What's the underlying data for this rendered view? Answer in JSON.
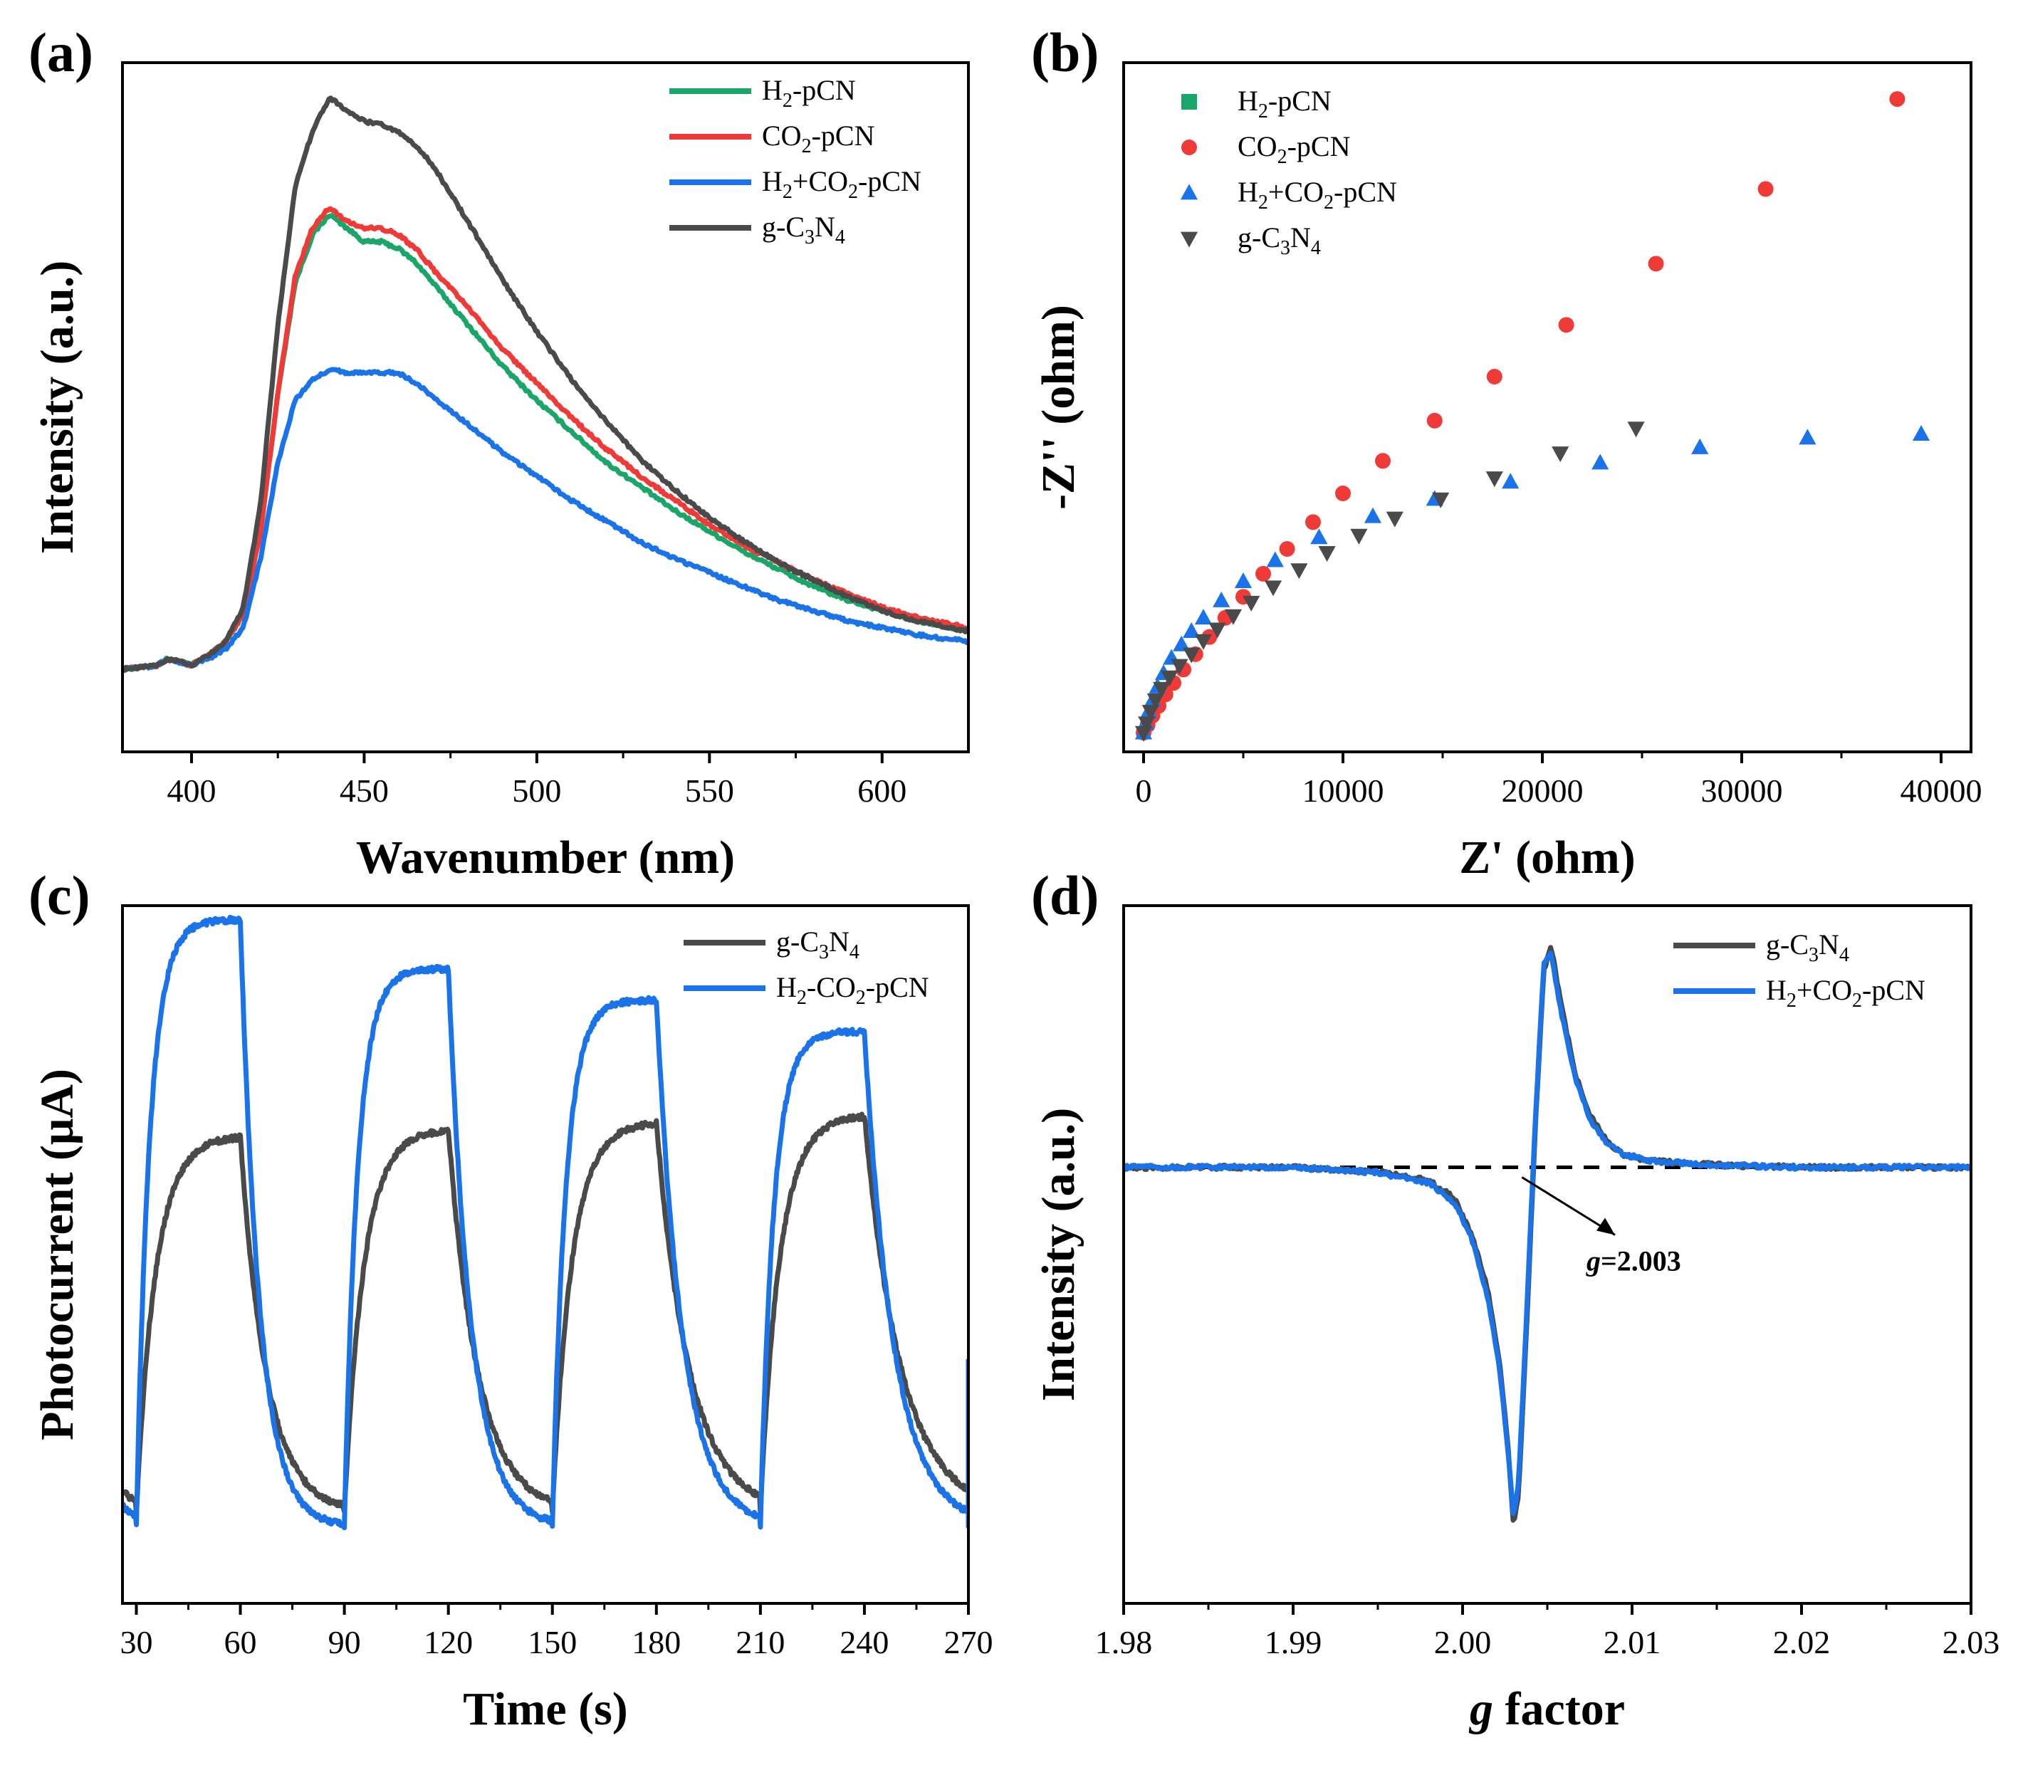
{
  "figure": {
    "panels": [
      "(a)",
      "(b)",
      "(c)",
      "(d)"
    ]
  },
  "chart_data": [
    {
      "id": "a",
      "type": "line",
      "panel_label": "(a)",
      "xlabel": "Wavenumber (nm)",
      "ylabel": "Intensity (a.u.)",
      "xlim": [
        380,
        625
      ],
      "ylim": [
        0,
        100
      ],
      "xticks": [
        400,
        450,
        500,
        550,
        600
      ],
      "yticks_shown": false,
      "legend_position": "top-right",
      "series": [
        {
          "name": "H2-pCN",
          "label_parts": [
            "H",
            "2",
            "-pCN"
          ],
          "color": "#1aa668",
          "x": [
            380,
            390,
            393,
            400,
            405,
            410,
            415,
            420,
            425,
            430,
            435,
            440,
            445,
            450,
            455,
            460,
            465,
            470,
            480,
            490,
            500,
            510,
            520,
            530,
            540,
            550,
            560,
            570,
            580,
            590,
            600,
            610,
            625
          ],
          "y": [
            12,
            12.5,
            13.5,
            12.6,
            14,
            16,
            20,
            32,
            52,
            68,
            75,
            78,
            76,
            74,
            74,
            73,
            71,
            68,
            62,
            56,
            51,
            46.5,
            42,
            38.5,
            35,
            32,
            29,
            26.5,
            24,
            22,
            20.5,
            19,
            17.5
          ]
        },
        {
          "name": "CO2-pCN",
          "label_parts": [
            "CO",
            "2",
            "-pCN"
          ],
          "color": "#ef3a38",
          "x": [
            380,
            390,
            393,
            400,
            405,
            410,
            415,
            420,
            425,
            430,
            435,
            440,
            445,
            450,
            455,
            460,
            465,
            470,
            480,
            490,
            500,
            510,
            520,
            530,
            540,
            550,
            560,
            570,
            580,
            590,
            600,
            610,
            625
          ],
          "y": [
            12,
            12.5,
            13.5,
            12.6,
            14,
            16,
            20,
            32,
            52,
            69,
            76,
            79,
            77,
            76,
            76,
            75,
            73,
            70,
            64.5,
            58.5,
            53.5,
            48.5,
            44,
            40,
            36.5,
            33,
            30,
            27.5,
            25,
            23,
            21,
            19.5,
            18
          ]
        },
        {
          "name": "H2+CO2-pCN",
          "label_parts": [
            "H",
            "2",
            "+CO",
            "2",
            "-pCN"
          ],
          "color": "#1a73e8",
          "x": [
            380,
            390,
            393,
            400,
            405,
            410,
            415,
            420,
            425,
            430,
            435,
            440,
            445,
            450,
            455,
            460,
            465,
            470,
            480,
            490,
            500,
            510,
            520,
            530,
            540,
            550,
            560,
            570,
            580,
            590,
            600,
            610,
            625
          ],
          "y": [
            12,
            12.5,
            13.5,
            12.6,
            13.5,
            15,
            18,
            28,
            42,
            51,
            54,
            55.5,
            55,
            55,
            55,
            55,
            53.5,
            51.5,
            47.5,
            43.5,
            40,
            36.5,
            33.5,
            30.5,
            28,
            26,
            24,
            22,
            20.5,
            19,
            18,
            17,
            16
          ]
        },
        {
          "name": "g-C3N4",
          "label_parts": [
            "g-C",
            "3",
            "N",
            "4"
          ],
          "color": "#4a4a4a",
          "x": [
            380,
            390,
            393,
            400,
            405,
            410,
            415,
            420,
            425,
            430,
            435,
            440,
            445,
            450,
            455,
            460,
            465,
            470,
            480,
            490,
            500,
            510,
            520,
            530,
            540,
            550,
            560,
            570,
            580,
            590,
            600,
            610,
            625
          ],
          "y": [
            12,
            12.5,
            13.5,
            12.6,
            14,
            16,
            21,
            36,
            62,
            82,
            90,
            95,
            93,
            91.5,
            91,
            90,
            88,
            85,
            77,
            68.5,
            61,
            54,
            48,
            42.5,
            38,
            34,
            30.5,
            27.5,
            25,
            22.5,
            20.5,
            19,
            17.5
          ]
        }
      ]
    },
    {
      "id": "b",
      "type": "scatter",
      "panel_label": "(b)",
      "xlabel": "Z' (ohm)",
      "ylabel": "-Z'' (ohm)",
      "xlim": [
        -1000,
        41500
      ],
      "ylim": [
        -500,
        17500
      ],
      "xticks": [
        0,
        10000,
        20000,
        30000,
        40000
      ],
      "yticks_shown": false,
      "legend_position": "top-left",
      "series": [
        {
          "name": "H2-pCN",
          "label_parts": [
            "H",
            "2",
            "-pCN"
          ],
          "color": "#1aa668",
          "marker": "square",
          "x": [],
          "y": []
        },
        {
          "name": "CO2-pCN",
          "label_parts": [
            "CO",
            "2",
            "-pCN"
          ],
          "color": "#ef3a38",
          "marker": "circle",
          "x": [
            0,
            200,
            450,
            750,
            1100,
            1500,
            2000,
            2600,
            3300,
            4100,
            5000,
            6000,
            7200,
            8500,
            10000,
            12000,
            14600,
            17600,
            21200,
            25700,
            31200,
            37800
          ],
          "y": [
            0,
            200,
            450,
            700,
            1000,
            1300,
            1650,
            2050,
            2500,
            3000,
            3550,
            4150,
            4800,
            5500,
            6250,
            7100,
            8150,
            9300,
            10650,
            12250,
            14200,
            16550
          ]
        },
        {
          "name": "H2+CO2-pCN",
          "label_parts": [
            "H",
            "2",
            "+CO",
            "2",
            "-pCN"
          ],
          "color": "#1a73e8",
          "marker": "triangle-up",
          "x": [
            0,
            100,
            250,
            450,
            700,
            1000,
            1400,
            1900,
            2400,
            3000,
            3900,
            5000,
            6600,
            8800,
            11500,
            14600,
            18400,
            22900,
            27900,
            33300,
            39000
          ],
          "y": [
            0,
            250,
            550,
            850,
            1200,
            1550,
            1950,
            2300,
            2650,
            3000,
            3450,
            3950,
            4500,
            5100,
            5650,
            6100,
            6550,
            7050,
            7450,
            7700,
            7800
          ]
        },
        {
          "name": "g-C3N4",
          "label_parts": [
            "g-C",
            "3",
            "N",
            "4"
          ],
          "color": "#4a4a4a",
          "marker": "triangle-down",
          "x": [
            0,
            150,
            350,
            600,
            900,
            1300,
            1800,
            2400,
            3000,
            3700,
            4500,
            5400,
            6500,
            7800,
            9200,
            10800,
            12600,
            14900,
            17600,
            20900,
            24700
          ],
          "y": [
            0,
            250,
            550,
            850,
            1150,
            1450,
            1750,
            2050,
            2400,
            2700,
            3050,
            3400,
            3800,
            4250,
            4700,
            5150,
            5600,
            6100,
            6650,
            7300,
            7950
          ]
        }
      ]
    },
    {
      "id": "c",
      "type": "line",
      "panel_label": "(c)",
      "xlabel": "Time (s)",
      "ylabel": "Photocurrent (μA)",
      "xlim": [
        26,
        270
      ],
      "ylim": [
        0,
        100
      ],
      "xticks": [
        30,
        60,
        90,
        120,
        150,
        180,
        210,
        240,
        270
      ],
      "yticks_shown": false,
      "legend_position": "top-right",
      "on_off_cycles": [
        [
          30,
          60
        ],
        [
          90,
          120
        ],
        [
          150,
          180
        ],
        [
          210,
          240
        ]
      ],
      "series": [
        {
          "name": "g-C3N4",
          "label_parts": [
            "g-C",
            "3",
            "N",
            "4"
          ],
          "color": "#4a4a4a",
          "baseline": 13,
          "plateaus": [
            67,
            68,
            69,
            70
          ],
          "rise_tau": 5.5,
          "decay_tau": 7.5
        },
        {
          "name": "H2-CO2-pCN",
          "label_parts": [
            "H",
            "2",
            "-CO",
            "2",
            "-pCN"
          ],
          "color": "#1a73e8",
          "baseline": 11,
          "plateaus": [
            98,
            91,
            86.5,
            82
          ],
          "rise_tau": 3.8,
          "decay_tau": 5.5
        }
      ]
    },
    {
      "id": "d",
      "type": "line",
      "panel_label": "(d)",
      "xlabel": "g factor",
      "ylabel": "Intensity (a.u.)",
      "xlim": [
        1.98,
        2.03
      ],
      "ylim": [
        -100,
        60
      ],
      "xticks": [
        1.98,
        1.99,
        2.0,
        2.01,
        2.02,
        2.03
      ],
      "xtick_labels": [
        "1.98",
        "1.99",
        "2.00",
        "2.01",
        "2.02",
        "2.03"
      ],
      "yticks_shown": false,
      "legend_position": "top-right",
      "reference_line_y": 0,
      "annotation": "g=2.003",
      "series": [
        {
          "name": "g-C3N4",
          "label_parts": [
            "g-C",
            "3",
            "N",
            "4"
          ],
          "color": "#4a4a4a",
          "x": [
            1.98,
            1.99,
            1.995,
            1.998,
            1.9995,
            2.0005,
            2.0015,
            2.0022,
            2.0027,
            2.003,
            2.0033,
            2.0038,
            2.0043,
            2.0048,
            2.0052,
            2.0058,
            2.0066,
            2.0075,
            2.0085,
            2.0095,
            2.011,
            2.015,
            2.02,
            2.025,
            2.03
          ],
          "y": [
            0,
            0,
            -1,
            -3,
            -7,
            -15,
            -28,
            -45,
            -65,
            -82,
            -75,
            -35,
            10,
            45,
            51,
            38,
            22,
            12,
            6,
            3,
            1.5,
            0.5,
            0,
            0,
            0
          ]
        },
        {
          "name": "H2+CO2-pCN",
          "label_parts": [
            "H",
            "2",
            "+CO",
            "2",
            "-pCN"
          ],
          "color": "#1a73e8",
          "x": [
            1.98,
            1.99,
            1.995,
            1.998,
            1.9995,
            2.0005,
            2.0015,
            2.0022,
            2.0027,
            2.003,
            2.0033,
            2.0038,
            2.0043,
            2.0048,
            2.0052,
            2.0058,
            2.0066,
            2.0075,
            2.0085,
            2.0095,
            2.011,
            2.015,
            2.02,
            2.025,
            2.03
          ],
          "y": [
            0,
            0,
            -1.2,
            -3.5,
            -8,
            -16,
            -30,
            -47,
            -66,
            -80,
            -72,
            -32,
            12,
            47,
            49,
            36,
            21,
            11,
            5.5,
            3,
            1.5,
            0.5,
            0,
            0,
            0
          ]
        }
      ]
    }
  ]
}
